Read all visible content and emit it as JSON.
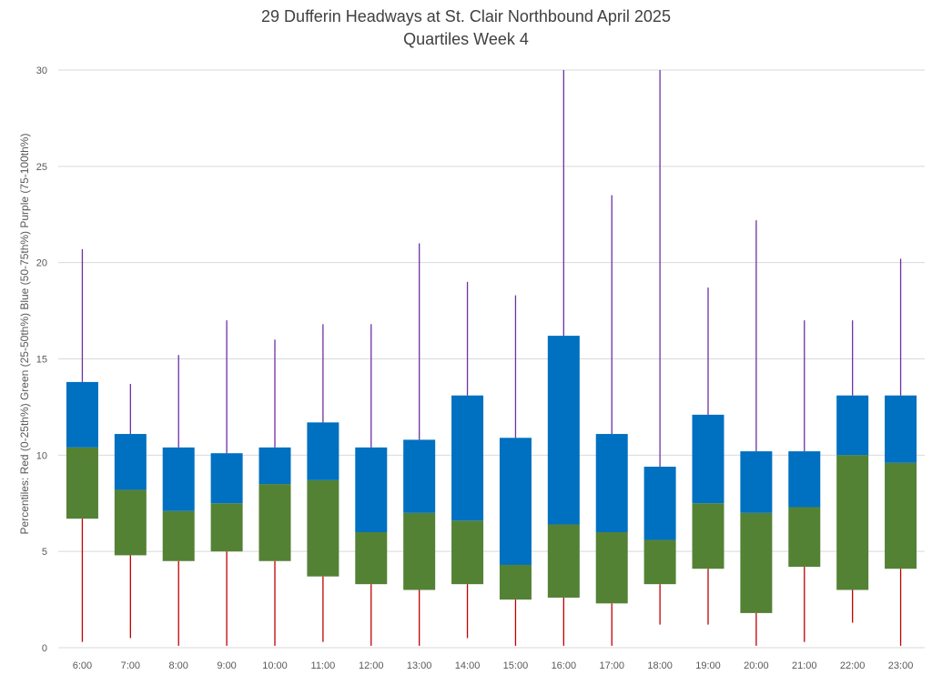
{
  "chart_data": {
    "type": "boxplot",
    "title": "29 Dufferin Headways at St. Clair Northbound April 2025",
    "subtitle": "Quartiles Week 4",
    "ylabel": "Percentiles:  Red (0-25th%)  Green (25-50th%)  Blue (50-75th%)  Purple (75-100th%)",
    "ylim": [
      0,
      30
    ],
    "yticks": [
      0,
      5,
      10,
      15,
      20,
      25,
      30
    ],
    "grid": true,
    "colors": {
      "min_whisker": "#c00000",
      "q2_box": "#548235",
      "q3_box": "#0070c0",
      "max_whisker": "#7030a0",
      "grid": "#d9d9d9"
    },
    "categories": [
      "6:00",
      "7:00",
      "8:00",
      "9:00",
      "10:00",
      "11:00",
      "12:00",
      "13:00",
      "14:00",
      "15:00",
      "16:00",
      "17:00",
      "18:00",
      "19:00",
      "20:00",
      "21:00",
      "22:00",
      "23:00"
    ],
    "series": [
      {
        "name": "Red (0-25th%)",
        "min": [
          0.3,
          0.5,
          0.1,
          0.1,
          0.1,
          0.3,
          0.1,
          0.1,
          0.5,
          0.1,
          0.1,
          0.1,
          1.2,
          1.2,
          0.1,
          0.3,
          1.3,
          0.1
        ],
        "q1": [
          6.7,
          4.8,
          4.5,
          5.0,
          4.5,
          3.7,
          3.3,
          3.0,
          3.3,
          2.5,
          2.6,
          2.3,
          3.3,
          4.1,
          1.8,
          4.2,
          3.0,
          4.1
        ]
      },
      {
        "name": "Green (25-50th%)",
        "q1": [
          6.7,
          4.8,
          4.5,
          5.0,
          4.5,
          3.7,
          3.3,
          3.0,
          3.3,
          2.5,
          2.6,
          2.3,
          3.3,
          4.1,
          1.8,
          4.2,
          3.0,
          4.1
        ],
        "median": [
          10.4,
          8.2,
          7.1,
          7.5,
          8.5,
          8.7,
          6.0,
          7.0,
          6.6,
          4.3,
          6.4,
          6.0,
          5.6,
          7.5,
          7.0,
          7.3,
          10.0,
          9.6
        ]
      },
      {
        "name": "Blue (50-75th%)",
        "median": [
          10.4,
          8.2,
          7.1,
          7.5,
          8.5,
          8.7,
          6.0,
          7.0,
          6.6,
          4.3,
          6.4,
          6.0,
          5.6,
          7.5,
          7.0,
          7.3,
          10.0,
          9.6
        ],
        "q3": [
          13.8,
          11.1,
          10.4,
          10.1,
          10.4,
          11.7,
          10.4,
          10.8,
          13.1,
          10.9,
          16.2,
          11.1,
          9.4,
          12.1,
          10.2,
          10.2,
          13.1,
          13.1
        ]
      },
      {
        "name": "Purple (75-100th%)",
        "q3": [
          13.8,
          11.1,
          10.4,
          10.1,
          10.4,
          11.7,
          10.4,
          10.8,
          13.1,
          10.9,
          16.2,
          11.1,
          9.4,
          12.1,
          10.2,
          10.2,
          13.1,
          13.1
        ],
        "max": [
          20.7,
          13.7,
          15.2,
          17.0,
          16.0,
          16.8,
          16.8,
          21.0,
          19.0,
          18.3,
          30.0,
          23.5,
          30.0,
          18.7,
          22.2,
          17.0,
          17.0,
          20.2
        ]
      }
    ]
  }
}
